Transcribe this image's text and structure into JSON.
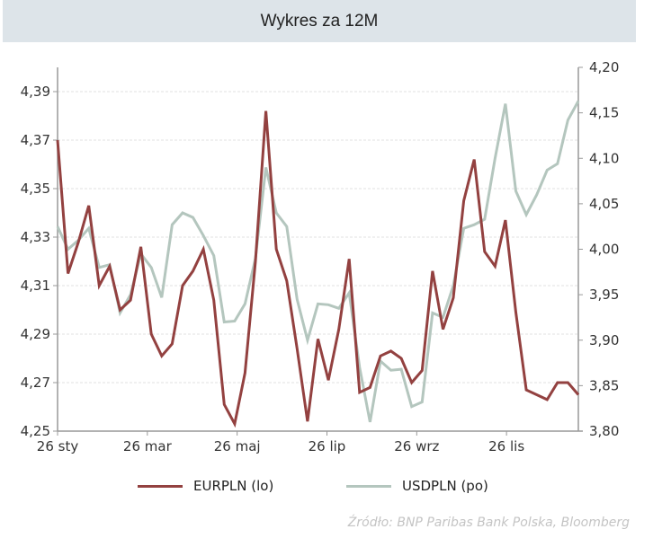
{
  "chart_data": {
    "type": "line",
    "title": "Wykres za 12M",
    "x_tick_labels": [
      "26 sty",
      "26 mar",
      "26 maj",
      "26 lip",
      "26 wrz",
      "26 lis"
    ],
    "y_left": {
      "ylim": [
        4.25,
        4.4
      ],
      "tick_labels": [
        "4,25",
        "4,27",
        "4,29",
        "4,31",
        "4,33",
        "4,35",
        "4,37",
        "4,39"
      ]
    },
    "y_right": {
      "ylim": [
        3.8,
        4.2
      ],
      "tick_labels": [
        "3,80",
        "3,85",
        "3,90",
        "3,95",
        "4,00",
        "4,05",
        "4,10",
        "4,15",
        "4,20"
      ]
    },
    "grid": true,
    "legend_placement": "bottom",
    "series": [
      {
        "name": "EURPLN (lo)",
        "axis": "left",
        "color": "#934140",
        "values": [
          4.37,
          4.315,
          4.328,
          4.343,
          4.31,
          4.318,
          4.3,
          4.304,
          4.326,
          4.29,
          4.281,
          4.286,
          4.31,
          4.316,
          4.325,
          4.304,
          4.261,
          4.253,
          4.274,
          4.32,
          4.382,
          4.325,
          4.312,
          4.284,
          4.254,
          4.288,
          4.271,
          4.292,
          4.321,
          4.266,
          4.268,
          4.281,
          4.283,
          4.28,
          4.27,
          4.275,
          4.316,
          4.292,
          4.305,
          4.345,
          4.362,
          4.324,
          4.318,
          4.337,
          4.299,
          4.267,
          4.265,
          4.263,
          4.27,
          4.27,
          4.265
        ]
      },
      {
        "name": "USDPLN (po)",
        "axis": "right",
        "color": "#b4c6be",
        "values": [
          4.025,
          4.0,
          4.01,
          4.023,
          3.98,
          3.983,
          3.93,
          3.95,
          3.995,
          3.98,
          3.947,
          4.027,
          4.04,
          4.035,
          4.015,
          3.993,
          3.92,
          3.921,
          3.94,
          3.99,
          4.09,
          4.04,
          4.025,
          3.945,
          3.9,
          3.94,
          3.939,
          3.935,
          3.952,
          3.87,
          3.81,
          3.877,
          3.867,
          3.868,
          3.827,
          3.832,
          3.93,
          3.925,
          3.96,
          4.023,
          4.027,
          4.033,
          4.1,
          4.16,
          4.064,
          4.038,
          4.06,
          4.087,
          4.094,
          4.142,
          4.163
        ]
      }
    ],
    "source": "Źródło:  BNP Paribas Bank Polska, Bloomberg"
  }
}
